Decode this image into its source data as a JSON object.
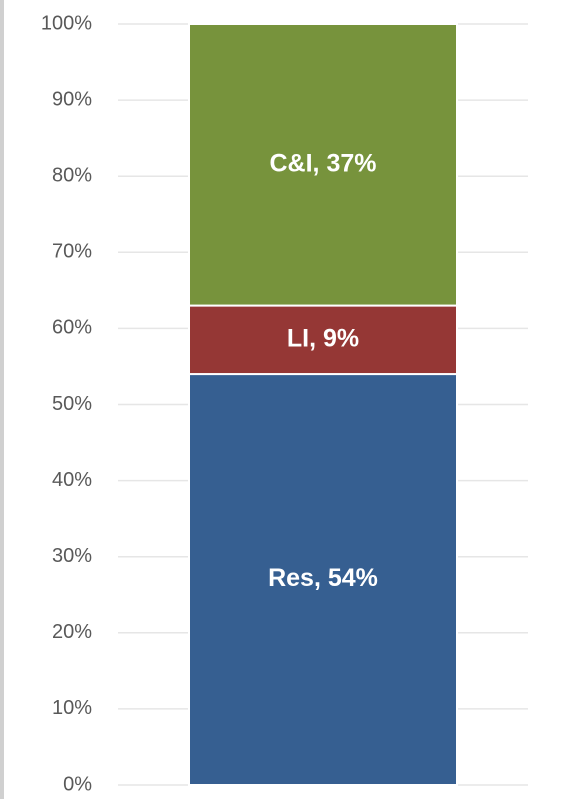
{
  "chart_data": {
    "type": "stacked_bar",
    "categories": [
      null
    ],
    "series": [
      {
        "name": "Res",
        "color": "#365f91",
        "values": [
          54
        ],
        "value_labels": [
          "Res, 54%"
        ]
      },
      {
        "name": "LI",
        "color": "#953735",
        "values": [
          9
        ],
        "value_labels": [
          "LI, 9%"
        ]
      },
      {
        "name": "C&I",
        "color": "#77933c",
        "values": [
          37
        ],
        "value_labels": [
          "C&I, 37%"
        ]
      }
    ],
    "ylim": [
      0,
      100
    ],
    "yticks": [
      {
        "value": 0,
        "label": "0%"
      },
      {
        "value": 10,
        "label": "10%"
      },
      {
        "value": 20,
        "label": "20%"
      },
      {
        "value": 30,
        "label": "30%"
      },
      {
        "value": 40,
        "label": "40%"
      },
      {
        "value": 50,
        "label": "50%"
      },
      {
        "value": 60,
        "label": "60%"
      },
      {
        "value": 70,
        "label": "70%"
      },
      {
        "value": 80,
        "label": "80%"
      },
      {
        "value": 90,
        "label": "90%"
      },
      {
        "value": 100,
        "label": "100%"
      }
    ],
    "grid": true
  }
}
